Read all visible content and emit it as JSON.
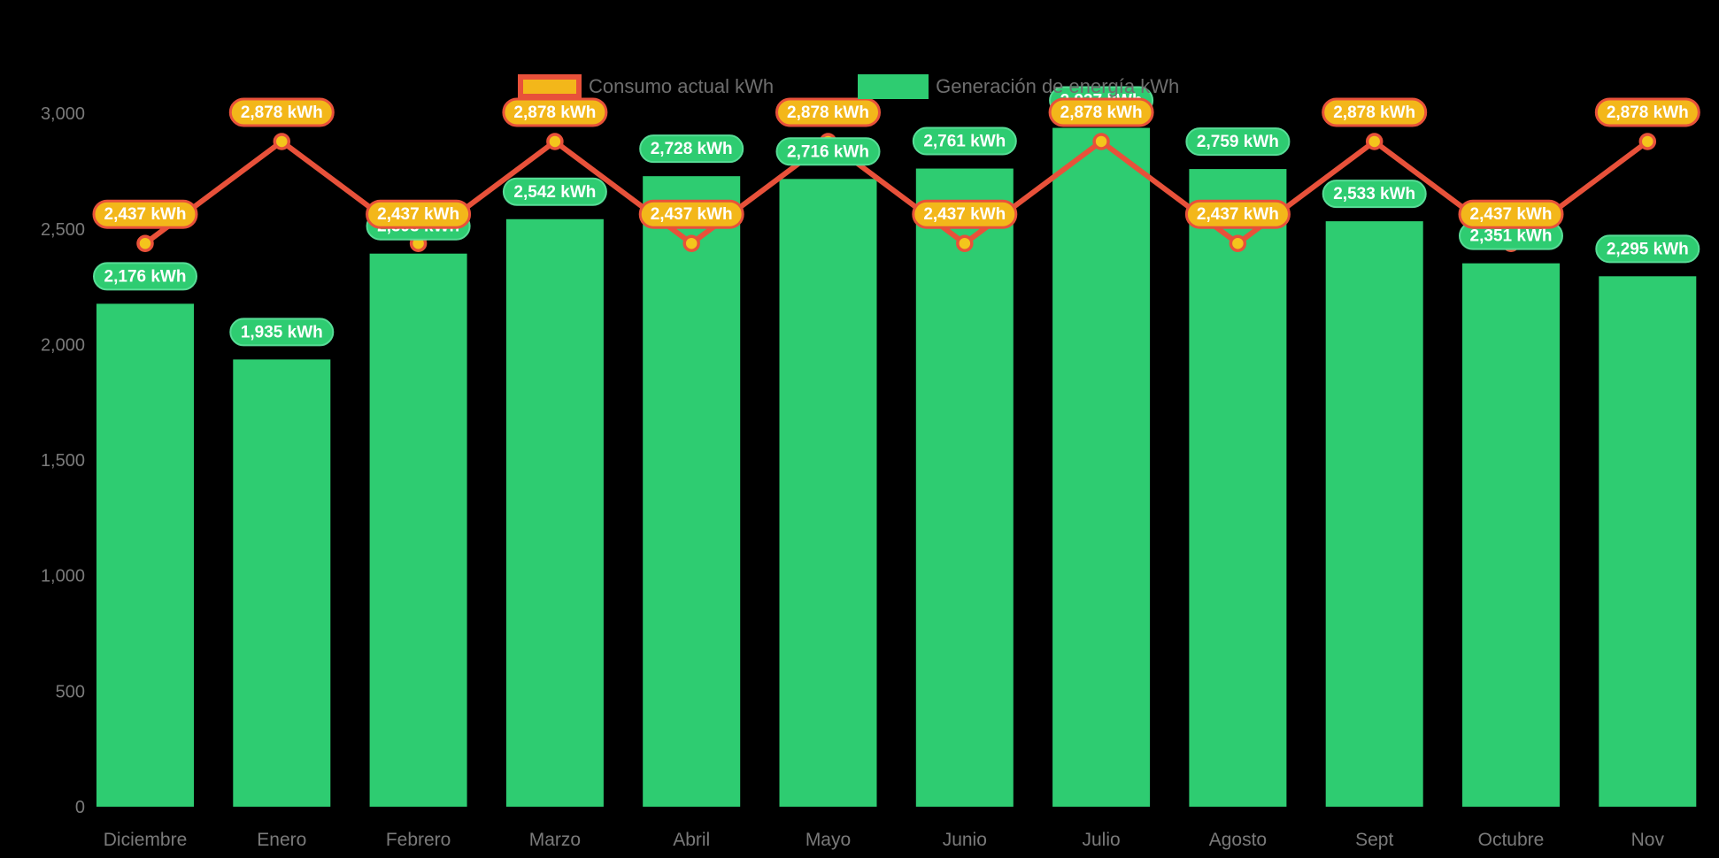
{
  "chart_data": {
    "type": "bar",
    "title": "",
    "legend_position": "top",
    "grid": false,
    "unit": "kWh",
    "categories": [
      "Diciembre",
      "Enero",
      "Febrero",
      "Marzo",
      "Abril",
      "Mayo",
      "Junio",
      "Julio",
      "Agosto",
      "Sept",
      "Octubre",
      "Nov"
    ],
    "series": [
      {
        "name": "Consumo actual kWh",
        "type": "line",
        "values": [
          2437,
          2878,
          2437,
          2878,
          2437,
          2878,
          2437,
          2878,
          2437,
          2878,
          2437,
          2878
        ],
        "labels": [
          "2,437 kWh",
          "2,878 kWh",
          "2,437 kWh",
          "2,878 kWh",
          "2,437 kWh",
          "2,878 kWh",
          "2,437 kWh",
          "2,878 kWh",
          "2,437 kWh",
          "2,878 kWh",
          "2,437 kWh",
          "2,878 kWh"
        ]
      },
      {
        "name": "Generación de energía kWh",
        "type": "bar",
        "values": [
          2176,
          1935,
          2393,
          2542,
          2728,
          2716,
          2761,
          2937,
          2759,
          2533,
          2351,
          2295
        ],
        "labels": [
          "2,176 kWh",
          "1,935 kWh",
          "2,393 kWh",
          "2,542 kWh",
          "2,728 kWh",
          "2,716 kWh",
          "2,761 kWh",
          "2,937 kWh",
          "2,759 kWh",
          "2,533 kWh",
          "2,351 kWh",
          "2,295 kWh"
        ]
      }
    ],
    "y_axis": {
      "range": [
        0,
        3000
      ],
      "ticks": [
        {
          "label": "0",
          "value": 0
        },
        {
          "label": "500",
          "value": 500
        },
        {
          "label": "1,000",
          "value": 1000
        },
        {
          "label": "1,500",
          "value": 1500
        },
        {
          "label": "2,000",
          "value": 2000
        },
        {
          "label": "2,500",
          "value": 2500
        },
        {
          "label": "3,000",
          "value": 3000
        }
      ]
    },
    "colors": {
      "bar": "#2ecc71",
      "bar_badge_border": "#57dd96",
      "line": "#e8513a",
      "point_fill": "#f4c51c",
      "consumo_badge_bg": "#f3b71a",
      "badge_text": "#ffffff",
      "axis_text": "#7a7a7a",
      "legend_text": "#6e6e6e",
      "background": "#000000"
    }
  }
}
